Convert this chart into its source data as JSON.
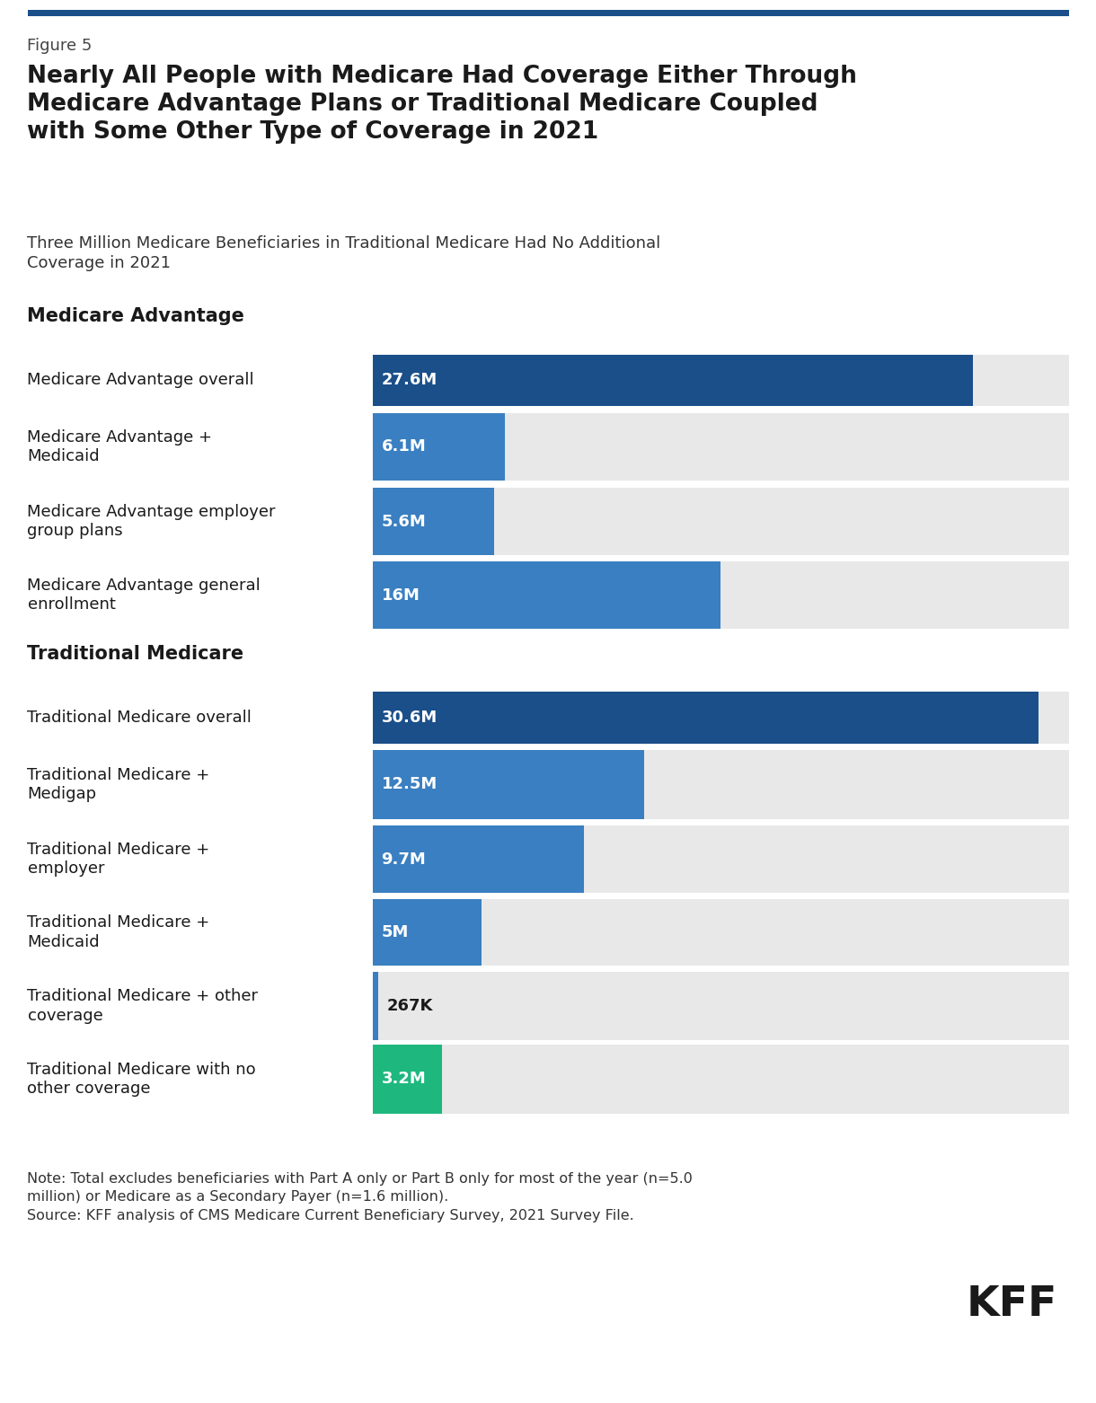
{
  "figure_label": "Figure 5",
  "title": "Nearly All People with Medicare Had Coverage Either Through\nMedicare Advantage Plans or Traditional Medicare Coupled\nwith Some Other Type of Coverage in 2021",
  "subtitle": "Three Million Medicare Beneficiaries in Traditional Medicare Had No Additional\nCoverage in 2021",
  "section_header_labels": [
    "Medicare Advantage",
    "Traditional Medicare"
  ],
  "categories": [
    "Medicare Advantage overall",
    "Medicare Advantage +\nMedicaid",
    "Medicare Advantage employer\ngroup plans",
    "Medicare Advantage general\nenrollment",
    "Traditional Medicare overall",
    "Traditional Medicare +\nMedigap",
    "Traditional Medicare +\nemployer",
    "Traditional Medicare +\nMedicaid",
    "Traditional Medicare + other\ncoverage",
    "Traditional Medicare with no\nother coverage"
  ],
  "values": [
    27.6,
    6.1,
    5.6,
    16.0,
    30.6,
    12.5,
    9.7,
    5.0,
    0.267,
    3.2
  ],
  "labels": [
    "27.6M",
    "6.1M",
    "5.6M",
    "16M",
    "30.6M",
    "12.5M",
    "9.7M",
    "5M",
    "267K",
    "3.2M"
  ],
  "colors": [
    "#1a4f8a",
    "#3a7fc1",
    "#3a7fc1",
    "#3a7fc1",
    "#1a4f8a",
    "#3a7fc1",
    "#3a7fc1",
    "#3a7fc1",
    "#3a7fc1",
    "#1eb87f"
  ],
  "bar_bg_color": "#e8e8e8",
  "max_value": 32.0,
  "note": "Note: Total excludes beneficiaries with Part A only or Part B only for most of the year (n=5.0\nmillion) or Medicare as a Secondary Payer (n=1.6 million).\nSource: KFF analysis of CMS Medicare Current Beneficiary Survey, 2021 Survey File.",
  "background_color": "#ffffff",
  "label_color_white": "#ffffff",
  "label_color_dark": "#1a1a1a",
  "top_bar_color": "#1a4f8a"
}
